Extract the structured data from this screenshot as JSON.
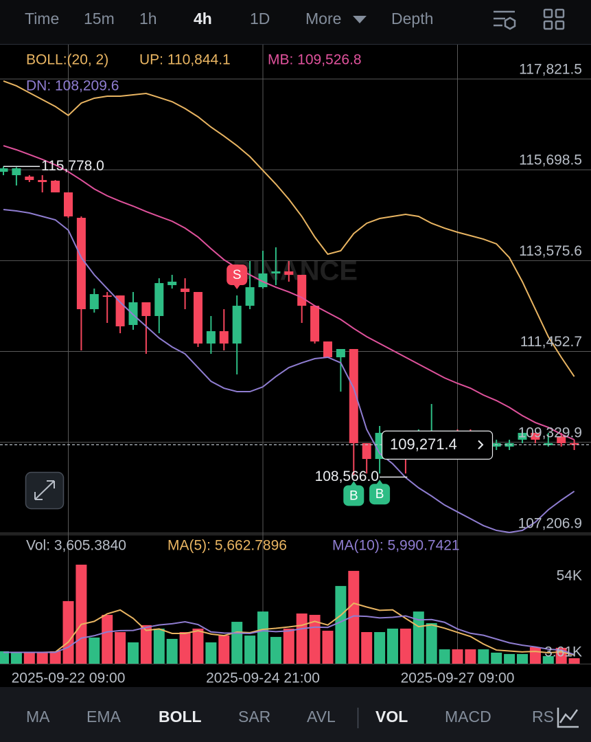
{
  "toolbar": {
    "items": [
      "Time",
      "15m",
      "1h",
      "4h",
      "1D",
      "More",
      "Depth"
    ],
    "active": "4h"
  },
  "indicator_tabs": {
    "items": [
      "MA",
      "EMA",
      "BOLL",
      "SAR",
      "AVL",
      "VOL",
      "MACD",
      "RS"
    ],
    "active": [
      "BOLL",
      "VOL"
    ]
  },
  "chart_data": [
    {
      "type": "candlestick",
      "indicator": "BOLL:(20, 2)",
      "watermark": "BINANCE",
      "categories": [
        null,
        null,
        null,
        null,
        null,
        "2025-09-22 09:00",
        null,
        null,
        null,
        null,
        null,
        null,
        null,
        null,
        null,
        null,
        null,
        null,
        null,
        null,
        "2025-09-24 21:00",
        null,
        null,
        null,
        null,
        null,
        null,
        null,
        null,
        null,
        null,
        null,
        null,
        null,
        null,
        "2025-09-27 09:00",
        null,
        null,
        null,
        null,
        null,
        null,
        null,
        null,
        null
      ],
      "open": [
        115653,
        115573,
        115541,
        115460,
        115444,
        115171,
        114577,
        112441,
        112762,
        112762,
        112072,
        112602,
        112281,
        113003,
        112923,
        112843,
        111638,
        111927,
        111638,
        112521,
        112955,
        113276,
        113324,
        113244,
        112521,
        111686,
        111317,
        111510,
        109309,
        108940,
        109069,
        109390,
        109229,
        109470,
        109390,
        109550,
        109550,
        109229,
        109229,
        109229,
        109390,
        109550,
        109261,
        109470,
        109310
      ],
      "high": [
        115778,
        115760,
        115573,
        115573,
        115460,
        115171,
        114609,
        112923,
        112843,
        112762,
        112843,
        112602,
        113164,
        113244,
        113164,
        112843,
        112281,
        112441,
        112762,
        113565,
        113806,
        113887,
        113565,
        113244,
        112521,
        111686,
        111510,
        111510,
        109309,
        109711,
        109550,
        109550,
        109631,
        110225,
        109550,
        109631,
        109631,
        109309,
        109390,
        109390,
        109631,
        109550,
        109550,
        109550,
        109390
      ],
      "low": [
        115573,
        115332,
        115412,
        115171,
        115171,
        114577,
        111478,
        112361,
        112120,
        111879,
        111959,
        111397,
        111879,
        112923,
        112441,
        111558,
        111397,
        111478,
        110915,
        112441,
        112923,
        113003,
        113084,
        112120,
        111638,
        111317,
        110514,
        108566,
        108600,
        108600,
        108940,
        108600,
        109149,
        109390,
        109309,
        109309,
        109309,
        109149,
        109149,
        109149,
        109309,
        109309,
        109229,
        109229,
        109149
      ],
      "close": [
        115733,
        115733,
        115460,
        115412,
        115171,
        114609,
        112441,
        112794,
        112730,
        112040,
        112602,
        112281,
        113051,
        113084,
        112843,
        111638,
        111927,
        111638,
        112521,
        112955,
        113276,
        113324,
        113244,
        112521,
        111686,
        111317,
        111510,
        109309,
        108940,
        109550,
        109390,
        109149,
        109390,
        109550,
        109470,
        109390,
        109390,
        109261,
        109309,
        109309,
        109550,
        109390,
        109309,
        109309,
        109271.4
      ],
      "up_color": "#2ebd85",
      "down_color": "#f6465d",
      "series": [
        {
          "label": "UP: 110,844.1",
          "color": "#e9b562",
          "values": [
            117773,
            117661,
            117500,
            117339,
            117179,
            116970,
            117259,
            117372,
            117420,
            117420,
            117452,
            117484,
            117388,
            117291,
            117131,
            116938,
            116697,
            116488,
            116263,
            116006,
            115685,
            115364,
            115011,
            114609,
            114127,
            113726,
            113806,
            114208,
            114449,
            114561,
            114609,
            114657,
            114609,
            114449,
            114336,
            114240,
            114160,
            114079,
            113967,
            113646,
            113084,
            112441,
            111799,
            111317,
            110867
          ]
        },
        {
          "label": "MB: 109,526.8",
          "color": "#e0529c",
          "values": [
            116263,
            116167,
            116055,
            115942,
            115814,
            115653,
            115460,
            115252,
            115091,
            114963,
            114850,
            114722,
            114609,
            114497,
            114336,
            114127,
            113854,
            113597,
            113405,
            113244,
            113084,
            112955,
            112843,
            112714,
            112521,
            112361,
            112200,
            111991,
            111799,
            111638,
            111478,
            111317,
            111156,
            110996,
            110835,
            110707,
            110594,
            110434,
            110305,
            110145,
            109952,
            109791,
            109679,
            109518,
            109390
          ]
        },
        {
          "label": "DN: 108,209.6",
          "color": "#8f7dd1",
          "values": [
            114770,
            114738,
            114690,
            114609,
            114529,
            114288,
            113646,
            113244,
            112923,
            112602,
            112313,
            112040,
            111767,
            111558,
            111397,
            111076,
            110755,
            110594,
            110514,
            110514,
            110626,
            110867,
            111076,
            111188,
            111285,
            111317,
            111188,
            110594,
            109631,
            109069,
            108828,
            108506,
            108266,
            108073,
            107864,
            107703,
            107543,
            107382,
            107270,
            107222,
            107270,
            107463,
            107752,
            107977,
            108185
          ]
        }
      ],
      "ylim": [
        107174,
        118624
      ],
      "yticks": [
        {
          "value": 117821.5,
          "label": "117,821.5"
        },
        {
          "value": 115698.5,
          "label": "115,698.5"
        },
        {
          "value": 113575.6,
          "label": "113,575.6"
        },
        {
          "value": 111452.7,
          "label": "111,452.7"
        },
        {
          "value": 109329.9,
          "label": "109,329.9"
        },
        {
          "value": 107206.9,
          "label": "107,206.9"
        }
      ],
      "grid": true,
      "high_label": "115,778.0",
      "low_label": "108,566.0",
      "last_price": {
        "value": 109271.4,
        "label": "109,271.4"
      },
      "markers": [
        {
          "label": "S"
        },
        {
          "label": "B"
        },
        {
          "label": "B"
        }
      ]
    },
    {
      "type": "bar",
      "label": "Vol: 3,605.3840",
      "values": [
        8200,
        7300,
        7300,
        7300,
        8200,
        41400,
        65500,
        17300,
        32300,
        20900,
        14100,
        25500,
        23200,
        16400,
        20900,
        23200,
        14100,
        18600,
        27700,
        18600,
        34500,
        17700,
        23200,
        33200,
        32300,
        21800,
        51400,
        61400,
        20900,
        20900,
        23200,
        23200,
        34500,
        26800,
        9500,
        9500,
        9500,
        9500,
        7300,
        6400,
        6400,
        10900,
        5000,
        10500,
        3605.384
      ],
      "series": [
        {
          "label": "MA(5): 5,662.7896",
          "color": "#e9b562",
          "values": [
            7500,
            7500,
            7500,
            7500,
            7700,
            14300,
            26000,
            28000,
            33000,
            35500,
            30000,
            22000,
            23000,
            20000,
            20000,
            21800,
            19600,
            18600,
            20900,
            20500,
            22700,
            23400,
            24300,
            25400,
            28000,
            25600,
            32000,
            40000,
            37500,
            35300,
            35600,
            30000,
            24500,
            25700,
            23500,
            20700,
            18000,
            13000,
            9000,
            8400,
            7800,
            8100,
            7200,
            7800,
            5662.7896
          ]
        },
        {
          "label": "MA(10): 5,990.7421",
          "color": "#8f7dd1",
          "values": [
            7500,
            7500,
            7500,
            7500,
            7500,
            10900,
            16900,
            18500,
            21000,
            21900,
            22000,
            24000,
            25600,
            26400,
            27700,
            25900,
            21000,
            20300,
            20200,
            20000,
            21800,
            21200,
            21700,
            23100,
            24200,
            24000,
            27700,
            31600,
            31300,
            30300,
            30700,
            31600,
            29000,
            29200,
            27400,
            23000,
            20100,
            18800,
            16300,
            13800,
            12200,
            11100,
            9600,
            9000,
            5990.7421
          ]
        }
      ],
      "ylim": [
        0,
        70900
      ],
      "yticks": [
        {
          "value": 54000,
          "label": "54K"
        },
        {
          "value": 3610,
          "label": "3.61K"
        }
      ]
    }
  ]
}
